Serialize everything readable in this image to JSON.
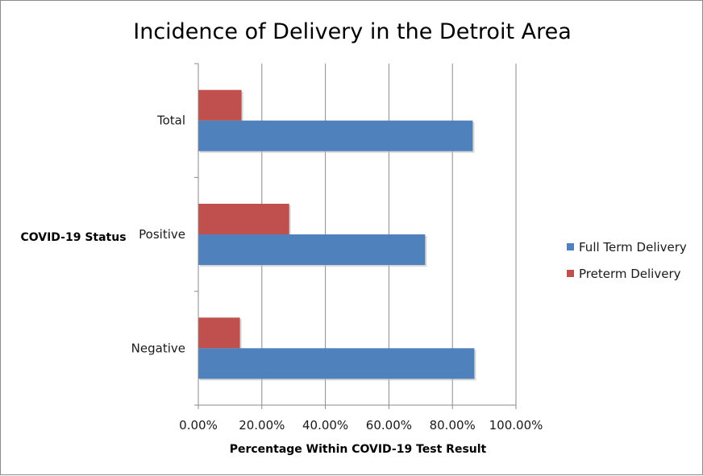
{
  "chart_data": {
    "type": "bar",
    "orientation": "horizontal",
    "title": "Incidence of Delivery in the Detroit Area",
    "xlabel": "Percentage Within COVID-19 Test Result",
    "ylabel": "COVID-19 Status",
    "categories": [
      "Total",
      "Positive",
      "Negative"
    ],
    "series": [
      {
        "name": "Preterm Delivery",
        "color": "#C0504D",
        "values": [
          13.6,
          28.6,
          13.1
        ]
      },
      {
        "name": "Full Term Delivery",
        "color": "#4F81BD",
        "values": [
          86.4,
          71.4,
          86.9
        ]
      }
    ],
    "xlim": [
      0,
      100
    ],
    "xticks": [
      0,
      20,
      40,
      60,
      80,
      100
    ],
    "xtick_labels": [
      "0.00%",
      "20.00%",
      "40.00%",
      "60.00%",
      "80.00%",
      "100.00%"
    ],
    "grid": true,
    "legend_position": "right"
  }
}
